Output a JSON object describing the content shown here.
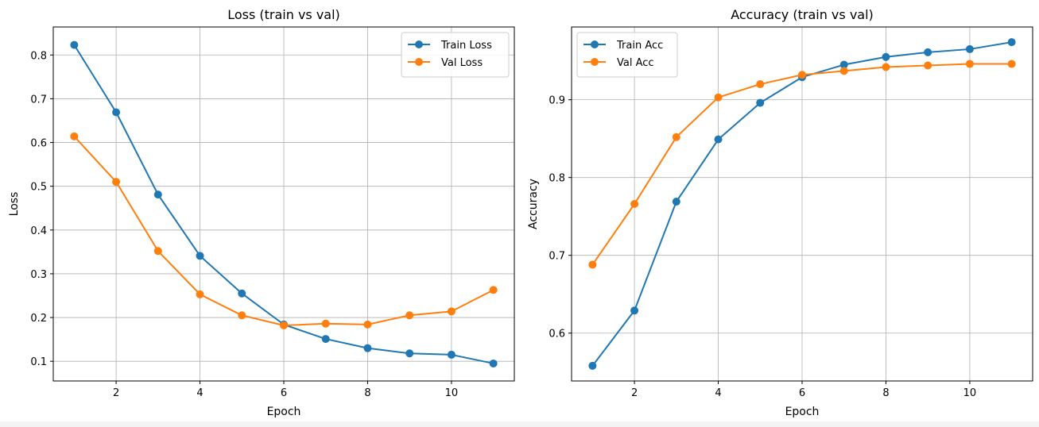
{
  "chart_data": [
    {
      "type": "line",
      "title": "Loss (train vs val)",
      "xlabel": "Epoch",
      "ylabel": "Loss",
      "x": [
        1,
        2,
        3,
        4,
        5,
        6,
        7,
        8,
        9,
        10,
        11
      ],
      "xlim": [
        0.5,
        11.5
      ],
      "ylim": [
        0.055,
        0.864
      ],
      "xticks": [
        2,
        4,
        6,
        8,
        10
      ],
      "xtick_labels": [
        "2",
        "4",
        "6",
        "8",
        "10"
      ],
      "yticks": [
        0.1,
        0.2,
        0.3,
        0.4,
        0.5,
        0.6,
        0.7,
        0.8
      ],
      "ytick_labels": [
        "0.1",
        "0.2",
        "0.3",
        "0.4",
        "0.5",
        "0.6",
        "0.7",
        "0.8"
      ],
      "grid": true,
      "legend_position": "upper-right",
      "series": [
        {
          "name": "Train Loss",
          "color": "#1f77b4",
          "values": [
            0.823,
            0.669,
            0.481,
            0.341,
            0.255,
            0.184,
            0.151,
            0.13,
            0.118,
            0.115,
            0.095
          ]
        },
        {
          "name": "Val Loss",
          "color": "#ff7f0e",
          "values": [
            0.614,
            0.51,
            0.352,
            0.253,
            0.205,
            0.182,
            0.186,
            0.184,
            0.205,
            0.214,
            0.263
          ]
        }
      ]
    },
    {
      "type": "line",
      "title": "Accuracy (train vs val)",
      "xlabel": "Epoch",
      "ylabel": "Accuracy",
      "x": [
        1,
        2,
        3,
        4,
        5,
        6,
        7,
        8,
        9,
        10,
        11
      ],
      "xlim": [
        0.5,
        11.5
      ],
      "ylim": [
        0.5385,
        0.9935
      ],
      "xticks": [
        2,
        4,
        6,
        8,
        10
      ],
      "xtick_labels": [
        "2",
        "4",
        "6",
        "8",
        "10"
      ],
      "yticks": [
        0.6,
        0.7,
        0.8,
        0.9
      ],
      "ytick_labels": [
        "0.6",
        "0.7",
        "0.8",
        "0.9"
      ],
      "grid": true,
      "legend_position": "upper-left",
      "series": [
        {
          "name": "Train Acc",
          "color": "#1f77b4",
          "values": [
            0.558,
            0.629,
            0.769,
            0.849,
            0.896,
            0.929,
            0.945,
            0.955,
            0.961,
            0.965,
            0.974
          ]
        },
        {
          "name": "Val Acc",
          "color": "#ff7f0e",
          "values": [
            0.688,
            0.766,
            0.852,
            0.903,
            0.92,
            0.932,
            0.937,
            0.942,
            0.944,
            0.946,
            0.946
          ]
        }
      ]
    }
  ]
}
